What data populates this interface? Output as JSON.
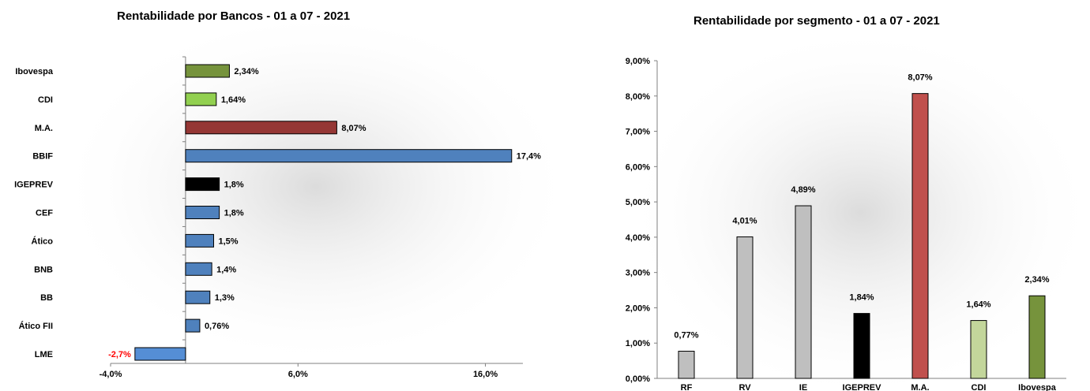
{
  "chart_data": [
    {
      "type": "bar",
      "orientation": "horizontal",
      "title": "Rentabilidade por Bancos - 01 a 07 - 2021",
      "categories": [
        "Ibovespa",
        "CDI",
        "M.A.",
        "BBIF",
        "IGEPREV",
        "CEF",
        "Ático",
        "BNB",
        "BB",
        "Ático FII",
        "LME"
      ],
      "values": [
        2.34,
        1.64,
        8.07,
        17.4,
        1.8,
        1.8,
        1.5,
        1.4,
        1.3,
        0.76,
        -2.7
      ],
      "data_labels": [
        "2,34%",
        "1,64%",
        "8,07%",
        "17,4%",
        "1,8%",
        "1,8%",
        "1,5%",
        "1,4%",
        "1,3%",
        "0,76%",
        "-2,7%"
      ],
      "colors": [
        "#76933c",
        "#92d050",
        "#953735",
        "#4f81bd",
        "#000000",
        "#4f81bd",
        "#4f81bd",
        "#4f81bd",
        "#4f81bd",
        "#4f81bd",
        "#558ed5"
      ],
      "negative_label_color": "#ff0000",
      "x_ticks": [
        -4,
        6,
        16
      ],
      "x_tick_labels": [
        "-4,0%",
        "6,0%",
        "16,0%"
      ],
      "xlim": [
        -4,
        18
      ],
      "grid": false,
      "legend": "none"
    },
    {
      "type": "bar",
      "title": "Rentabilidade por segmento - 01 a 07 - 2021",
      "categories": [
        "RF",
        "RV",
        "IE",
        "IGEPREV",
        "M.A.",
        "CDI",
        "Ibovespa"
      ],
      "values": [
        0.77,
        4.01,
        4.89,
        1.84,
        8.07,
        1.64,
        2.34
      ],
      "data_labels": [
        "0,77%",
        "4,01%",
        "4,89%",
        "1,84%",
        "8,07%",
        "1,64%",
        "2,34%"
      ],
      "colors": [
        "#bfbfbf",
        "#bfbfbf",
        "#bfbfbf",
        "#000000",
        "#c0504d",
        "#c3d69b",
        "#76933c"
      ],
      "y_ticks": [
        0,
        1,
        2,
        3,
        4,
        5,
        6,
        7,
        8,
        9
      ],
      "y_tick_labels": [
        "0,00%",
        "1,00%",
        "2,00%",
        "3,00%",
        "4,00%",
        "5,00%",
        "6,00%",
        "7,00%",
        "8,00%",
        "9,00%"
      ],
      "ylim": [
        0,
        9
      ],
      "grid": false,
      "legend": "none"
    }
  ]
}
